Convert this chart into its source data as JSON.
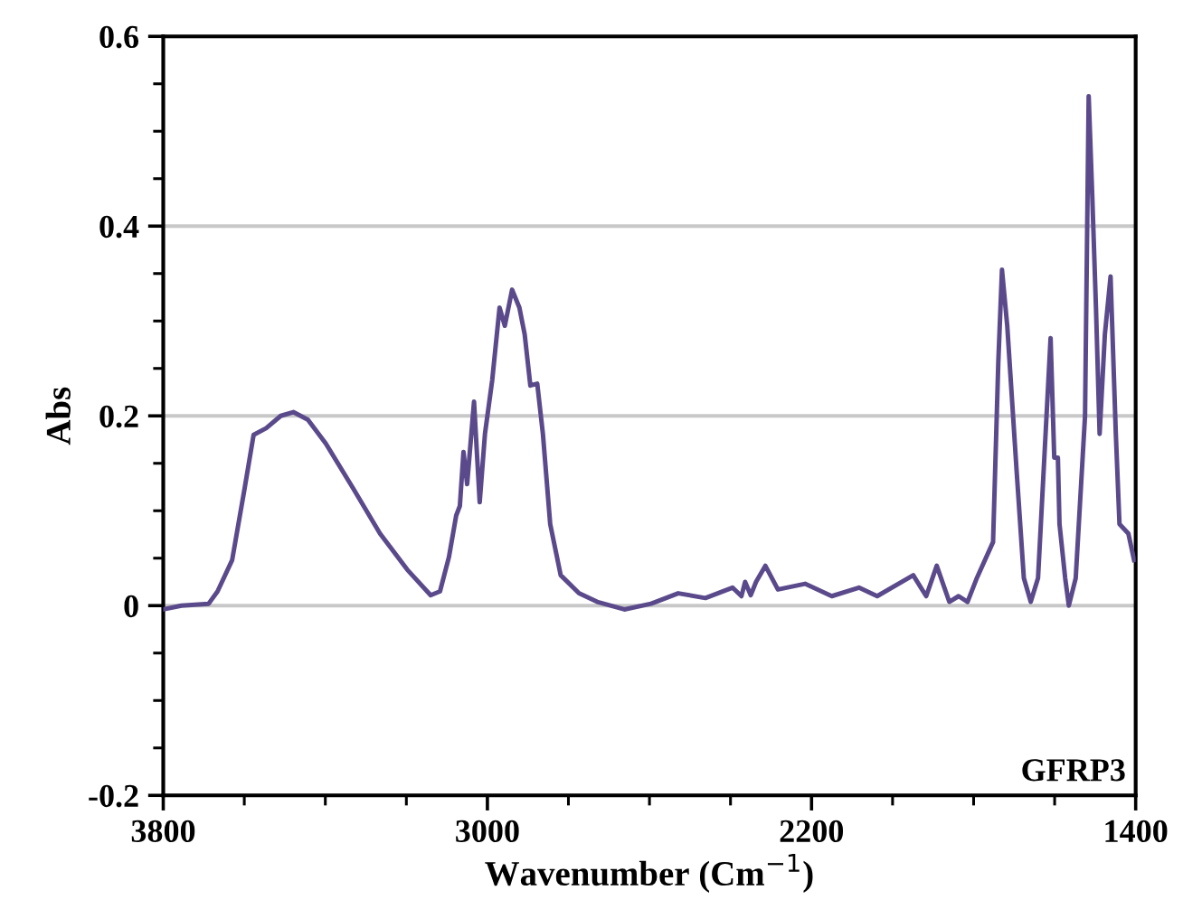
{
  "chart_data": {
    "type": "line",
    "xlabel": "Wavenumber (Cm$^{−1}$)",
    "ylabel": "Abs",
    "annotations": [
      "GFRP3"
    ],
    "xlim": [
      3800,
      1400
    ],
    "xticks": [
      3800,
      3000,
      2200,
      1400
    ],
    "ylim": [
      -0.2,
      0.6
    ],
    "yticks": [
      {
        "value": -0.2,
        "label": "-0.2"
      },
      0,
      0.2,
      0.4,
      0.6
    ],
    "grid": "y",
    "legend": false,
    "marker": "none",
    "line_style": "solid",
    "series": [
      {
        "color": "#5b4a8b",
        "x": [
          3800,
          3755,
          3688,
          3666,
          3630,
          3599,
          3577,
          3546,
          3510,
          3479,
          3443,
          3399,
          3332,
          3265,
          3198,
          3140,
          3117,
          3095,
          3077,
          3068,
          3059,
          3050,
          3033,
          3019,
          3006,
          2988,
          2970,
          2957,
          2939,
          2921,
          2908,
          2894,
          2877,
          2863,
          2845,
          2819,
          2774,
          2729,
          2662,
          2596,
          2529,
          2462,
          2395,
          2373,
          2364,
          2350,
          2337,
          2314,
          2283,
          2216,
          2150,
          2083,
          2038,
          1949,
          1917,
          1891,
          1860,
          1837,
          1815,
          1793,
          1752,
          1739,
          1730,
          1717,
          1694,
          1676,
          1659,
          1641,
          1610,
          1601,
          1592,
          1588,
          1574,
          1565,
          1548,
          1525,
          1516,
          1507,
          1498,
          1489,
          1476,
          1462,
          1449,
          1440,
          1418,
          1404
        ],
        "values": [
          -0.004,
          0,
          0.002,
          0.015,
          0.048,
          0.124,
          0.18,
          0.187,
          0.2,
          0.204,
          0.196,
          0.171,
          0.124,
          0.076,
          0.038,
          0.011,
          0.015,
          0.051,
          0.095,
          0.105,
          0.162,
          0.128,
          0.215,
          0.109,
          0.181,
          0.238,
          0.314,
          0.295,
          0.333,
          0.314,
          0.286,
          0.232,
          0.234,
          0.181,
          0.086,
          0.032,
          0.013,
          0.004,
          -0.004,
          0.002,
          0.013,
          0.008,
          0.019,
          0.01,
          0.025,
          0.011,
          0.025,
          0.042,
          0.017,
          0.023,
          0.01,
          0.019,
          0.01,
          0.032,
          0.01,
          0.042,
          0.004,
          0.01,
          0.004,
          0.028,
          0.067,
          0.257,
          0.354,
          0.295,
          0.143,
          0.029,
          0.004,
          0.029,
          0.282,
          0.156,
          0.156,
          0.086,
          0.029,
          0,
          0.029,
          0.2,
          0.537,
          0.43,
          0.314,
          0.181,
          0.286,
          0.347,
          0.181,
          0.086,
          0.076,
          0.048
        ]
      }
    ]
  }
}
